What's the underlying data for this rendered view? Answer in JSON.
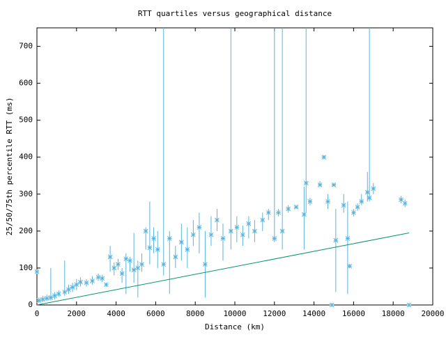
{
  "chart_data": [
    {
      "type": "errorbar",
      "title": "RTT quartiles versus geographical distance",
      "x_label": "Distance (km)",
      "y_label": "25/50/75th percentile RTT (ms)",
      "xlim": [
        0,
        20000
      ],
      "xticks": [
        0,
        2000,
        4000,
        6000,
        8000,
        10000,
        12000,
        14000,
        16000,
        18000,
        20000
      ],
      "ylim": [
        0,
        750
      ],
      "yticks": [
        0,
        100,
        200,
        300,
        400,
        500,
        600,
        700
      ],
      "color": "#56b4e0",
      "x": [
        0,
        100,
        300,
        500,
        700,
        900,
        1100,
        1400,
        1600,
        1800,
        2000,
        2200,
        2500,
        2800,
        3100,
        3300,
        3500,
        3700,
        3900,
        4100,
        4300,
        4500,
        4700,
        4900,
        5100,
        5300,
        5500,
        5700,
        5900,
        6100,
        6400,
        6700,
        7000,
        7300,
        7600,
        7900,
        8200,
        8500,
        8800,
        9100,
        9400,
        9800,
        10100,
        10400,
        10700,
        11000,
        11400,
        11700,
        12000,
        12200,
        12400,
        12700,
        13100,
        13500,
        13600,
        13800,
        14300,
        14500,
        14700,
        14900,
        15000,
        15100,
        15500,
        15700,
        15800,
        16000,
        16200,
        16400,
        16700,
        16800,
        17000,
        18400,
        18600,
        18800
      ],
      "values": [
        90,
        12,
        15,
        18,
        20,
        25,
        30,
        35,
        42,
        48,
        55,
        62,
        60,
        65,
        75,
        72,
        55,
        130,
        100,
        110,
        85,
        125,
        120,
        95,
        100,
        110,
        200,
        155,
        180,
        150,
        110,
        180,
        130,
        170,
        150,
        190,
        210,
        110,
        190,
        230,
        180,
        200,
        210,
        190,
        220,
        200,
        230,
        250,
        180,
        250,
        200,
        260,
        265,
        245,
        330,
        280,
        325,
        400,
        280,
        0,
        325,
        175,
        270,
        180,
        105,
        250,
        265,
        280,
        305,
        290,
        315,
        285,
        275,
        0
      ],
      "low": [
        88,
        5,
        8,
        10,
        12,
        15,
        22,
        25,
        30,
        35,
        40,
        50,
        50,
        55,
        65,
        62,
        50,
        90,
        80,
        95,
        60,
        30,
        90,
        60,
        20,
        90,
        150,
        110,
        140,
        100,
        80,
        30,
        100,
        120,
        100,
        160,
        140,
        20,
        160,
        200,
        120,
        150,
        170,
        160,
        180,
        170,
        200,
        230,
        170,
        240,
        150,
        250,
        260,
        150,
        250,
        270,
        320,
        395,
        260,
        0,
        320,
        35,
        250,
        30,
        100,
        240,
        255,
        270,
        280,
        280,
        300,
        275,
        265,
        0
      ],
      "high": [
        92,
        20,
        25,
        28,
        100,
        35,
        40,
        120,
        55,
        60,
        70,
        75,
        70,
        78,
        85,
        82,
        60,
        160,
        115,
        125,
        100,
        140,
        130,
        195,
        120,
        140,
        210,
        280,
        210,
        200,
        750,
        200,
        160,
        220,
        210,
        230,
        250,
        200,
        240,
        260,
        220,
        750,
        240,
        215,
        240,
        230,
        250,
        260,
        750,
        260,
        750,
        270,
        270,
        320,
        750,
        290,
        335,
        405,
        300,
        0,
        330,
        260,
        300,
        280,
        110,
        260,
        275,
        300,
        360,
        750,
        330,
        295,
        285,
        0
      ]
    },
    {
      "type": "line",
      "color": "#00966e",
      "x": [
        0,
        18800
      ],
      "values": [
        0,
        195
      ]
    }
  ]
}
